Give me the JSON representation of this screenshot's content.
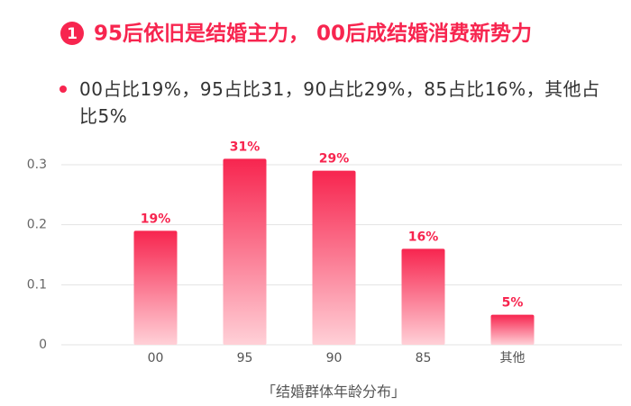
{
  "badge": "1",
  "chart_data": {
    "type": "bar",
    "title": "95后依旧是结婚主力， 00后成结婚消费新势力",
    "subtitle": "00占比19%，95占比31，90占比29%，85占比16%，其他占比5%",
    "x_label": "「结婚群体年龄分布」",
    "categories": [
      "00",
      "95",
      "90",
      "85",
      "其他"
    ],
    "values": [
      0.19,
      0.31,
      0.29,
      0.16,
      0.05
    ],
    "value_labels": [
      "19%",
      "31%",
      "29%",
      "16%",
      "5%"
    ],
    "color": "#f7254f",
    "ylim": [
      0,
      0.3
    ],
    "yticks": [
      0,
      0.1,
      0.2,
      0.3
    ],
    "grid": true
  }
}
